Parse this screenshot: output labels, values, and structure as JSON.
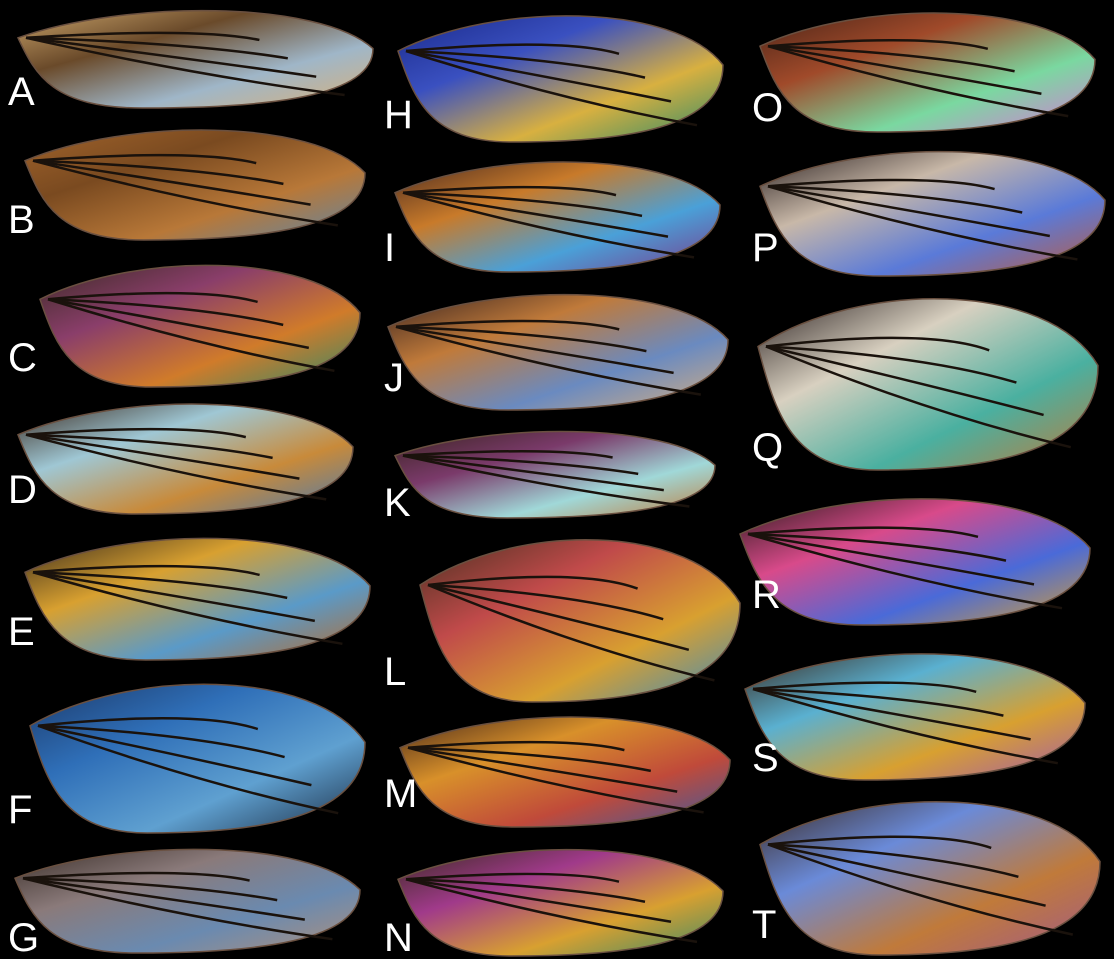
{
  "figure": {
    "background": "#000000",
    "panels": [
      {
        "label": "A",
        "palette": [
          "#c9a36a",
          "#6a4a2a",
          "#9fb6c8",
          "#d9b27a"
        ]
      },
      {
        "label": "B",
        "palette": [
          "#a0632b",
          "#7a4a20",
          "#b87838",
          "#5d86a8"
        ]
      },
      {
        "label": "C",
        "palette": [
          "#3b2a24",
          "#8a3e6a",
          "#d07b2a",
          "#2e8a6a"
        ]
      },
      {
        "label": "D",
        "palette": [
          "#3a2a20",
          "#9fc7d4",
          "#c88a3a",
          "#4a7ab0"
        ]
      },
      {
        "label": "E",
        "palette": [
          "#3a2c1c",
          "#d8a030",
          "#5a9ac8",
          "#b86a2a"
        ]
      },
      {
        "label": "F",
        "palette": [
          "#1c3a6a",
          "#2f6fb8",
          "#5fa0d0",
          "#1a2a40"
        ]
      },
      {
        "label": "G",
        "palette": [
          "#3a2e28",
          "#8a7a7a",
          "#6a8ab0",
          "#b0907a"
        ]
      },
      {
        "label": "H",
        "palette": [
          "#1a2a8a",
          "#3a50c0",
          "#d8b040",
          "#2a8a6a"
        ]
      },
      {
        "label": "I",
        "palette": [
          "#4a2a20",
          "#c87a2a",
          "#4aa0d8",
          "#7a3a8a"
        ]
      },
      {
        "label": "J",
        "palette": [
          "#3a2420",
          "#c07a3a",
          "#6a8ac0",
          "#d8b080"
        ]
      },
      {
        "label": "K",
        "palette": [
          "#3a2420",
          "#7a3a6a",
          "#a0d8d8",
          "#c07a3a"
        ]
      },
      {
        "label": "L",
        "palette": [
          "#4a3020",
          "#c04a4a",
          "#d8a030",
          "#3a8ac0"
        ]
      },
      {
        "label": "M",
        "palette": [
          "#4a2a1a",
          "#d8902a",
          "#c04a3a",
          "#3a5aa0"
        ]
      },
      {
        "label": "N",
        "palette": [
          "#3a2a20",
          "#a03a8a",
          "#d8a030",
          "#3a8a6a"
        ]
      },
      {
        "label": "O",
        "palette": [
          "#4a2418",
          "#a04a2a",
          "#7ad8a0",
          "#d87ad8"
        ]
      },
      {
        "label": "P",
        "palette": [
          "#2a2020",
          "#c8b8a8",
          "#5a7ad8",
          "#c05a3a"
        ]
      },
      {
        "label": "Q",
        "palette": [
          "#2a2020",
          "#d8d0c0",
          "#4ab0a0",
          "#c07a3a"
        ]
      },
      {
        "label": "R",
        "palette": [
          "#2a1a1a",
          "#d84a8a",
          "#4a6ad8",
          "#d8a030"
        ]
      },
      {
        "label": "S",
        "palette": [
          "#3a2a20",
          "#5ab0d0",
          "#d8a030",
          "#a05ab0"
        ]
      },
      {
        "label": "T",
        "palette": [
          "#3a2a24",
          "#6a8ad8",
          "#c07a3a",
          "#a05a8a"
        ]
      }
    ]
  }
}
